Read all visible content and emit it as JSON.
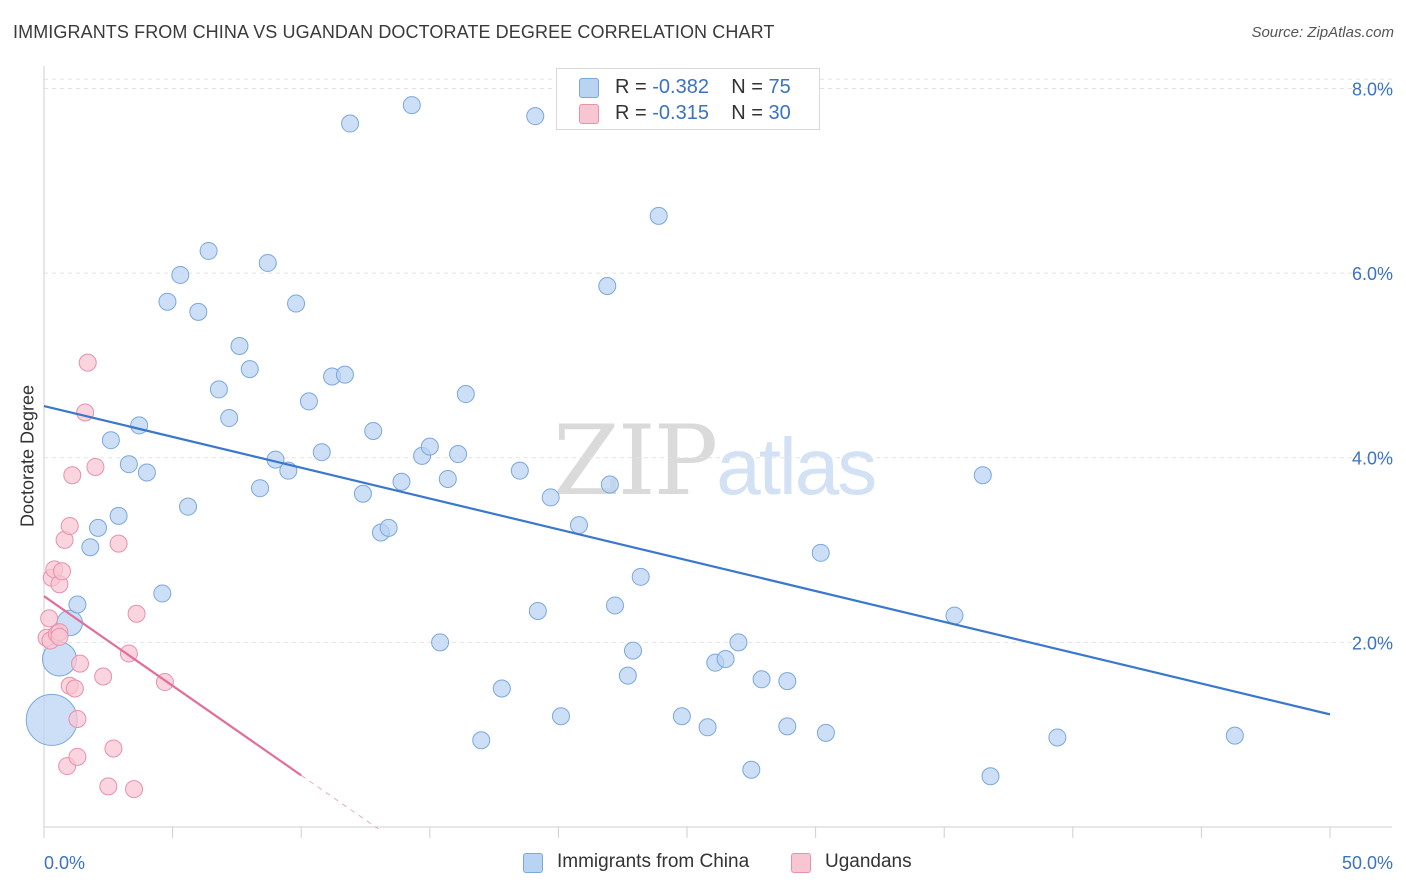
{
  "title": "IMMIGRANTS FROM CHINA VS UGANDAN DOCTORATE DEGREE CORRELATION CHART",
  "source": "Source: ZipAtlas.com",
  "watermark": {
    "zip": "ZIP",
    "atlas": "atlas"
  },
  "legend": {
    "r_prefix": "R = ",
    "n_prefix": "N = ",
    "entries": [
      {
        "name": "Immigrants from China",
        "r": "-0.382",
        "n": "75",
        "fill": "#b9d3f2",
        "stroke": "#7aa8dc"
      },
      {
        "name": "Ugandans",
        "r": "-0.315",
        "n": "30",
        "fill": "#f8c5d3",
        "stroke": "#e891ab"
      }
    ]
  },
  "chart_data": {
    "type": "scatter",
    "xlabel": "",
    "ylabel": "Doctorate Degree",
    "xlim": [
      0,
      50
    ],
    "ylim": [
      0,
      8.2
    ],
    "x_tick_labels": [
      {
        "value": 0,
        "label": "0.0%"
      },
      {
        "value": 50,
        "label": "50.0%"
      }
    ],
    "x_minor_ticks": [
      0,
      5,
      10,
      15,
      20,
      25,
      30,
      35,
      40,
      45,
      50
    ],
    "y_ticks": [
      {
        "value": 2,
        "label": "2.0%"
      },
      {
        "value": 4,
        "label": "4.0%"
      },
      {
        "value": 6,
        "label": "6.0%"
      },
      {
        "value": 8,
        "label": "8.0%"
      }
    ],
    "grid": true,
    "colors": {
      "china": "#3a78cc",
      "uganda": "#e0709a",
      "grid": "#e3e3e3",
      "tick_label": "#3a72c4"
    },
    "series": [
      {
        "name": "Immigrants from China",
        "fill": "#b9d3f2",
        "stroke": "#7aa8dc",
        "trend": {
          "x0": 0,
          "y0": 4.56,
          "x1": 50,
          "y1": 1.22
        },
        "points": [
          [
            0.3,
            1.16,
            3
          ],
          [
            0.6,
            1.82,
            2
          ],
          [
            1.0,
            2.21,
            1.5
          ],
          [
            1.3,
            2.41,
            1
          ],
          [
            1.8,
            3.03,
            1
          ],
          [
            2.1,
            3.24,
            1
          ],
          [
            2.6,
            4.19,
            1
          ],
          [
            2.9,
            3.37,
            1
          ],
          [
            3.3,
            3.93,
            1
          ],
          [
            3.7,
            4.35,
            1
          ],
          [
            4.0,
            3.84,
            1
          ],
          [
            4.6,
            2.53,
            1
          ],
          [
            4.8,
            5.69,
            1
          ],
          [
            5.3,
            5.98,
            1
          ],
          [
            5.6,
            3.47,
            1
          ],
          [
            6.0,
            5.58,
            1
          ],
          [
            6.4,
            6.24,
            1
          ],
          [
            6.8,
            4.74,
            1
          ],
          [
            7.2,
            4.43,
            1
          ],
          [
            7.6,
            5.21,
            1
          ],
          [
            8.0,
            4.96,
            1
          ],
          [
            8.4,
            3.67,
            1
          ],
          [
            8.7,
            6.11,
            1
          ],
          [
            9.0,
            3.98,
            1
          ],
          [
            9.5,
            3.86,
            1
          ],
          [
            9.8,
            5.67,
            1
          ],
          [
            10.3,
            4.61,
            1
          ],
          [
            10.8,
            4.06,
            1
          ],
          [
            11.2,
            4.88,
            1
          ],
          [
            11.7,
            4.9,
            1
          ],
          [
            11.9,
            7.62,
            1
          ],
          [
            12.4,
            3.61,
            1
          ],
          [
            12.8,
            4.29,
            1
          ],
          [
            13.1,
            3.19,
            1
          ],
          [
            13.4,
            3.24,
            1
          ],
          [
            13.9,
            3.74,
            1
          ],
          [
            14.3,
            7.82,
            1
          ],
          [
            14.7,
            4.02,
            1
          ],
          [
            15.0,
            4.12,
            1
          ],
          [
            15.4,
            2.0,
            1
          ],
          [
            15.7,
            3.77,
            1
          ],
          [
            16.1,
            4.04,
            1
          ],
          [
            16.4,
            4.69,
            1
          ],
          [
            17.0,
            0.94,
            1
          ],
          [
            17.8,
            1.5,
            1
          ],
          [
            18.5,
            3.86,
            1
          ],
          [
            19.1,
            7.7,
            1
          ],
          [
            19.2,
            2.34,
            1
          ],
          [
            19.7,
            3.57,
            1
          ],
          [
            20.1,
            1.2,
            1
          ],
          [
            20.8,
            3.27,
            1
          ],
          [
            21.9,
            5.86,
            1
          ],
          [
            22.0,
            3.71,
            1
          ],
          [
            22.2,
            2.4,
            1
          ],
          [
            22.7,
            1.64,
            1
          ],
          [
            22.9,
            1.91,
            1
          ],
          [
            23.2,
            2.71,
            1
          ],
          [
            23.9,
            6.62,
            1
          ],
          [
            24.8,
            1.2,
            1
          ],
          [
            25.8,
            1.08,
            1
          ],
          [
            26.1,
            1.78,
            1
          ],
          [
            26.5,
            1.82,
            1
          ],
          [
            27.0,
            2.0,
            1
          ],
          [
            27.5,
            0.62,
            1
          ],
          [
            27.9,
            1.6,
            1
          ],
          [
            28.9,
            1.58,
            1
          ],
          [
            28.9,
            1.09,
            1
          ],
          [
            29.8,
            7.9,
            1
          ],
          [
            30.2,
            2.97,
            1
          ],
          [
            30.4,
            1.02,
            1
          ],
          [
            35.4,
            2.29,
            1
          ],
          [
            36.5,
            3.81,
            1
          ],
          [
            36.8,
            0.55,
            1
          ],
          [
            39.4,
            0.97,
            1
          ],
          [
            46.3,
            0.99,
            1
          ]
        ]
      },
      {
        "name": "Ugandans",
        "fill": "#f8c5d3",
        "stroke": "#e891ab",
        "trend": {
          "x0": 0,
          "y0": 2.5,
          "x1": 10,
          "y1": 0.56
        },
        "trend_dashed": {
          "x0": 10,
          "y0": 0.56,
          "x1": 13,
          "y1": -0.02
        },
        "points": [
          [
            0.1,
            2.05,
            1
          ],
          [
            0.2,
            2.26,
            1
          ],
          [
            0.25,
            2.02,
            1
          ],
          [
            0.3,
            2.7,
            1
          ],
          [
            0.4,
            2.79,
            1
          ],
          [
            0.5,
            2.09,
            1
          ],
          [
            0.6,
            2.11,
            1
          ],
          [
            0.6,
            2.06,
            1
          ],
          [
            0.6,
            2.63,
            1
          ],
          [
            0.7,
            2.77,
            1
          ],
          [
            0.8,
            3.11,
            1
          ],
          [
            0.9,
            0.66,
            1
          ],
          [
            1.0,
            3.26,
            1
          ],
          [
            1.0,
            1.53,
            1
          ],
          [
            1.1,
            3.81,
            1
          ],
          [
            1.2,
            1.5,
            1
          ],
          [
            1.3,
            0.76,
            1
          ],
          [
            1.3,
            1.17,
            1
          ],
          [
            1.4,
            1.77,
            1
          ],
          [
            1.6,
            4.49,
            1
          ],
          [
            1.7,
            5.03,
            1
          ],
          [
            2.0,
            3.9,
            1
          ],
          [
            2.3,
            1.63,
            1
          ],
          [
            2.5,
            0.44,
            1
          ],
          [
            2.7,
            0.85,
            1
          ],
          [
            2.9,
            3.07,
            1
          ],
          [
            3.3,
            1.88,
            1
          ],
          [
            3.5,
            0.41,
            1
          ],
          [
            3.6,
            2.31,
            1
          ],
          [
            4.7,
            1.57,
            1
          ]
        ]
      }
    ]
  }
}
